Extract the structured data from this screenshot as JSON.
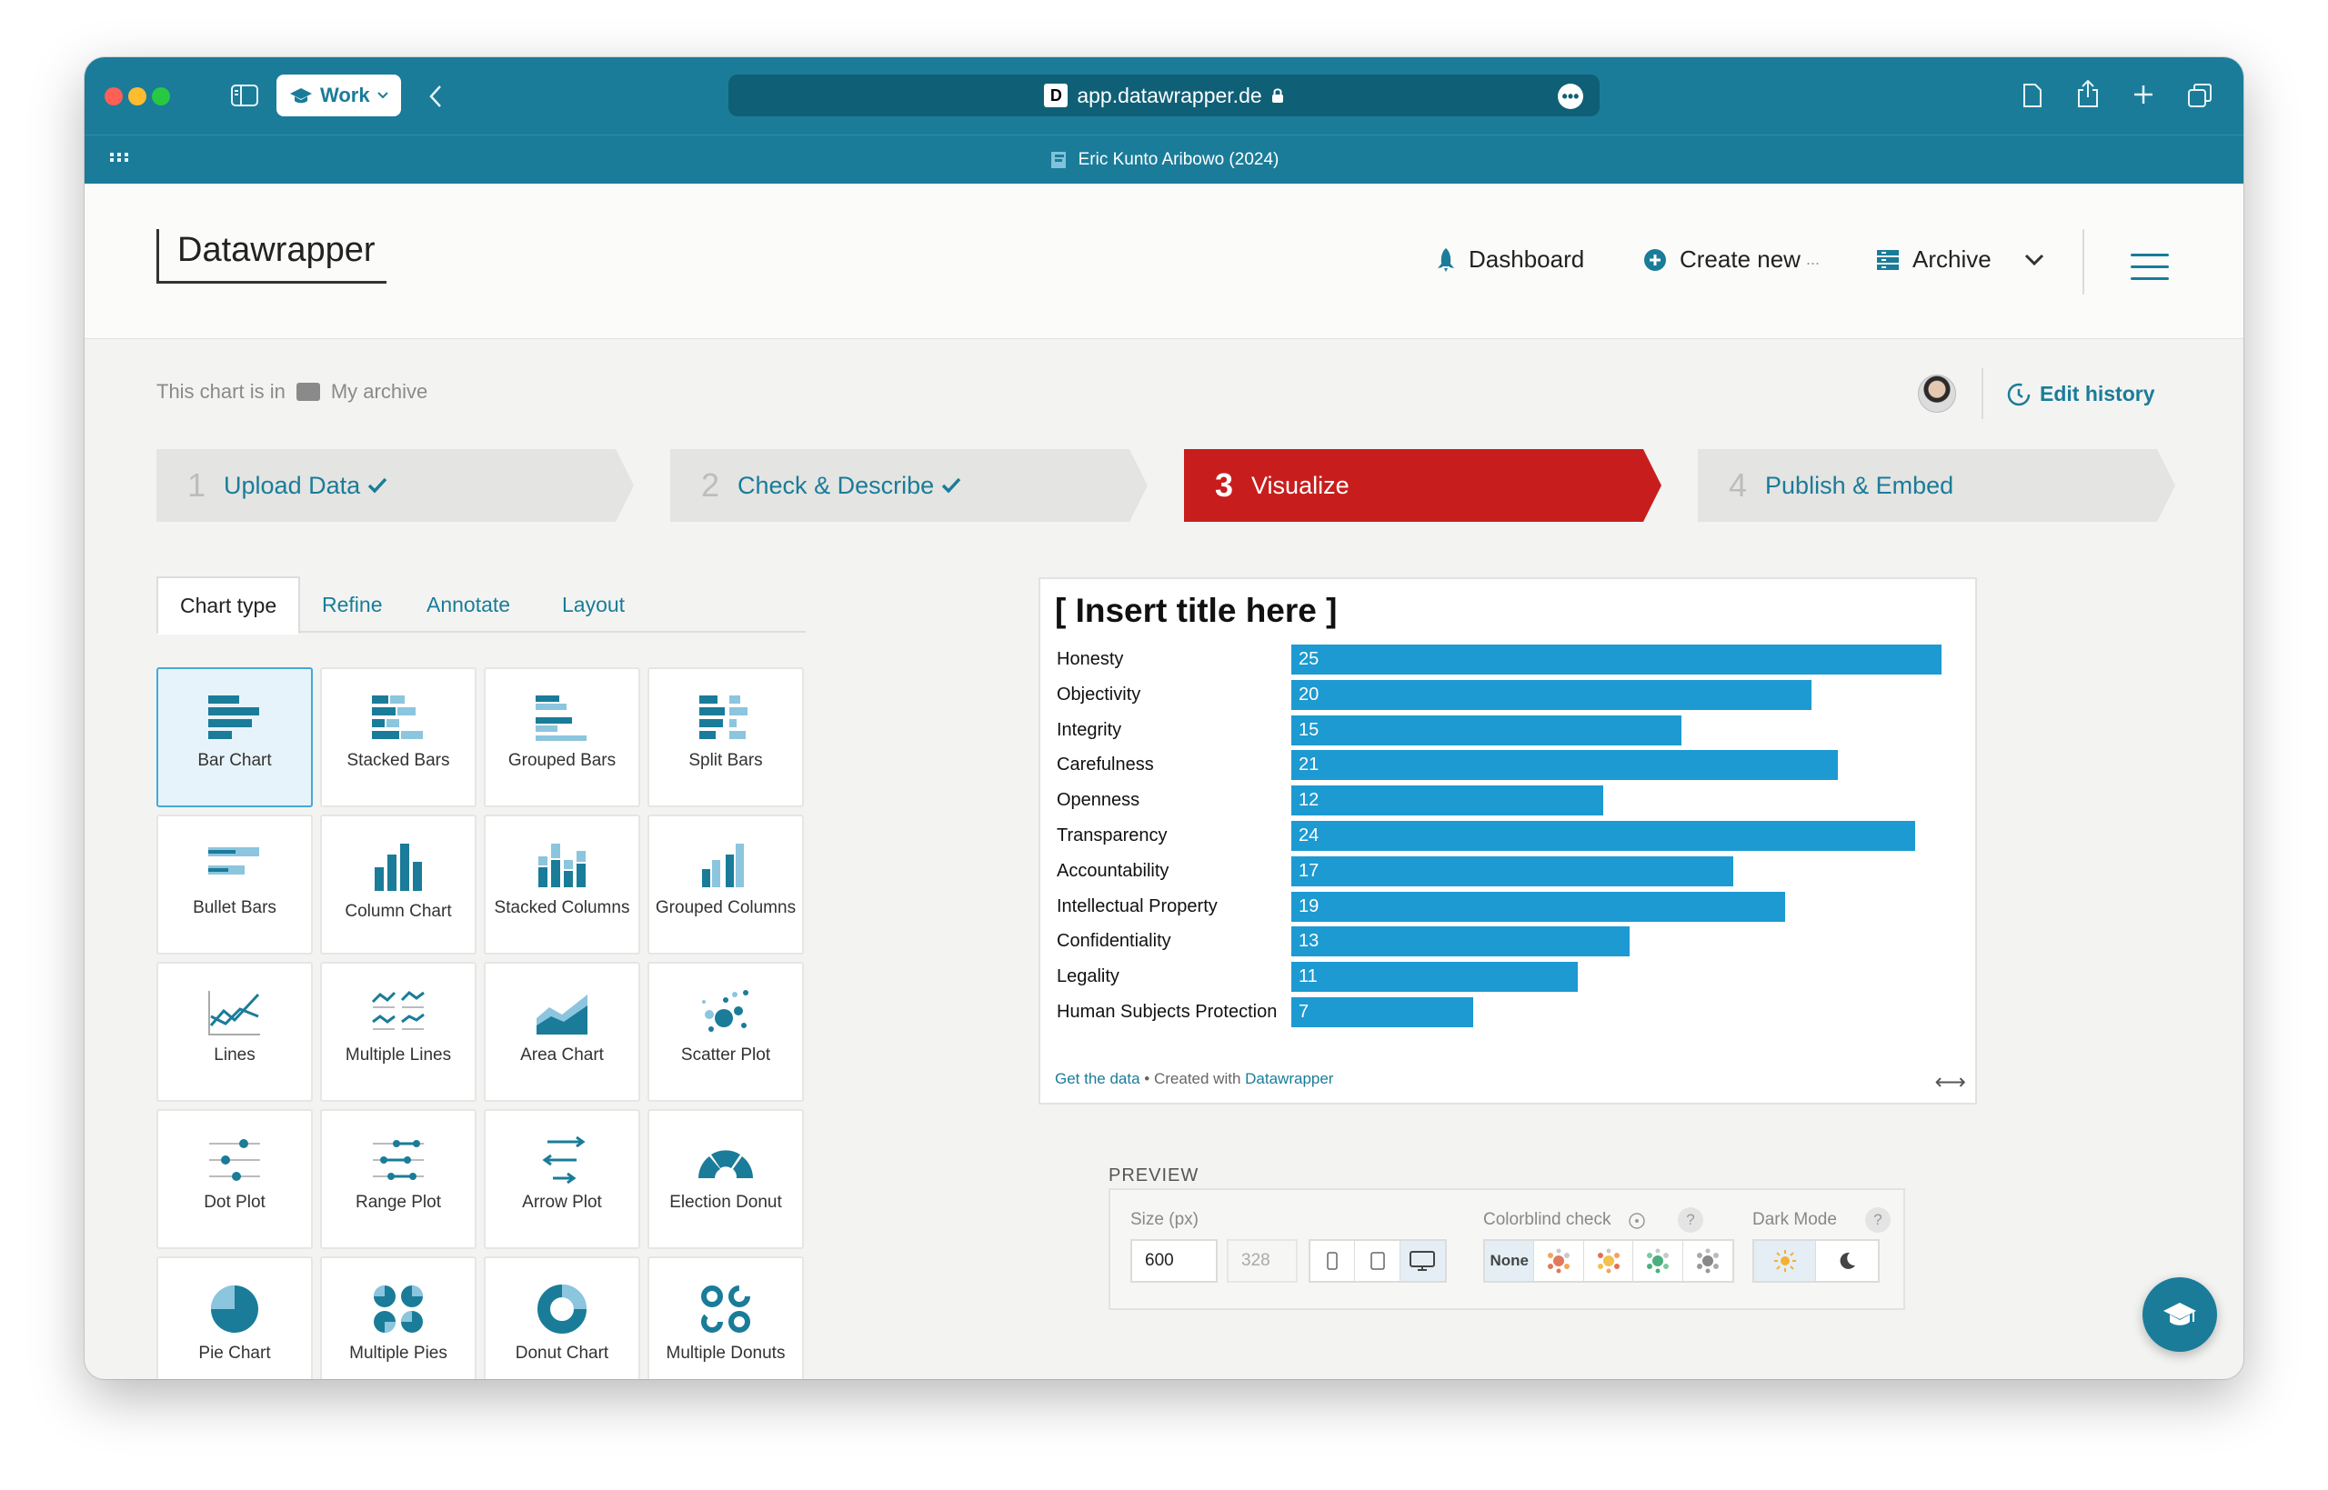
{
  "browser": {
    "tab_group": "Work",
    "url": "app.datawrapper.de",
    "favicon_letter": "D",
    "tab_title": "Eric Kunto Aribowo (2024)"
  },
  "header": {
    "logo": "Datawrapper",
    "nav": {
      "dashboard": "Dashboard",
      "create_new": "Create new",
      "create_ellipsis": "...",
      "archive": "Archive"
    }
  },
  "location": {
    "prefix": "This chart is in",
    "folder": "My archive"
  },
  "edit_history": "Edit history",
  "steps": [
    {
      "num": "1",
      "label": "Upload Data",
      "state": "done"
    },
    {
      "num": "2",
      "label": "Check & Describe",
      "state": "done"
    },
    {
      "num": "3",
      "label": "Visualize",
      "state": "active"
    },
    {
      "num": "4",
      "label": "Publish & Embed",
      "state": "todo"
    }
  ],
  "tabs": [
    "Chart type",
    "Refine",
    "Annotate",
    "Layout"
  ],
  "chart_types": [
    "Bar Chart",
    "Stacked Bars",
    "Grouped Bars",
    "Split Bars",
    "Bullet Bars",
    "Column Chart",
    "Stacked Columns",
    "Grouped Columns",
    "Lines",
    "Multiple Lines",
    "Area Chart",
    "Scatter Plot",
    "Dot Plot",
    "Range Plot",
    "Arrow Plot",
    "Election Donut",
    "Pie Chart",
    "Multiple Pies",
    "Donut Chart",
    "Multiple Donuts"
  ],
  "chart_data": {
    "type": "bar",
    "title": "[ Insert title here ]",
    "categories": [
      "Honesty",
      "Objectivity",
      "Integrity",
      "Carefulness",
      "Openness",
      "Transparency",
      "Accountability",
      "Intellectual Property",
      "Confidentiality",
      "Legality",
      "Human Subjects Protection"
    ],
    "values": [
      25,
      20,
      15,
      21,
      12,
      24,
      17,
      19,
      13,
      11,
      7
    ],
    "xlim": [
      0,
      25
    ],
    "color": "#1d9ad1"
  },
  "chart_footer": {
    "get_data": "Get the data",
    "sep": " • Created with ",
    "brand": "Datawrapper"
  },
  "preview": {
    "label": "PREVIEW",
    "size_label": "Size (px)",
    "width": "600",
    "height": "328",
    "colorblind_label": "Colorblind check",
    "colorblind_none": "None",
    "darkmode_label": "Dark Mode",
    "help": "?"
  },
  "colors": {
    "brand": "#1a7c99",
    "active_step": "#c71e1d",
    "bar": "#1d9ad1"
  }
}
